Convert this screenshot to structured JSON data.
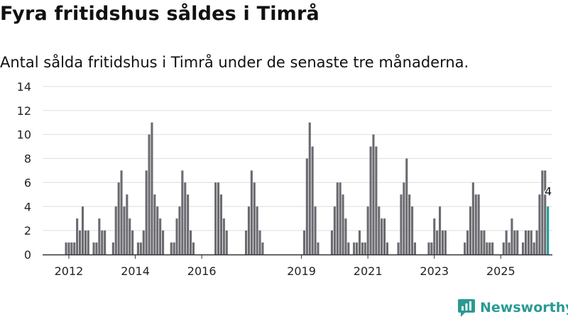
{
  "title": "Fyra fritidshus såldes i Timrå",
  "subtitle": "Antal sålda fritidshus i Timrå under de senaste tre månaderna.",
  "brand": "Newsworthy",
  "colors": {
    "bar": "#6b6a70",
    "highlight": "#1f9e98",
    "grid": "#dddddd",
    "axis": "#333333",
    "brand": "#2a9a93"
  },
  "chart_data": {
    "type": "bar",
    "title": "",
    "xlabel": "",
    "ylabel": "",
    "ylim": [
      0,
      14
    ],
    "yticks": [
      "0",
      "2",
      "4",
      "6",
      "8",
      "10",
      "12",
      "14"
    ],
    "xticks": [
      "2012",
      "2014",
      "2016",
      "2019",
      "2021",
      "2023",
      "2025"
    ],
    "grid": true,
    "x_start": "2011-12",
    "x_end": "2025-10",
    "values": [
      1,
      1,
      1,
      1,
      3,
      2,
      4,
      2,
      2,
      0,
      1,
      1,
      3,
      2,
      2,
      0,
      0,
      1,
      4,
      6,
      7,
      4,
      5,
      3,
      2,
      0,
      1,
      1,
      2,
      7,
      10,
      11,
      5,
      4,
      3,
      2,
      0,
      0,
      1,
      1,
      3,
      4,
      7,
      6,
      5,
      2,
      1,
      0,
      0,
      0,
      0,
      0,
      0,
      0,
      6,
      6,
      5,
      3,
      2,
      0,
      0,
      0,
      0,
      0,
      0,
      2,
      4,
      7,
      6,
      4,
      2,
      1,
      0,
      0,
      0,
      0,
      0,
      0,
      0,
      0,
      0,
      0,
      0,
      0,
      0,
      0,
      2,
      8,
      11,
      9,
      4,
      1,
      0,
      0,
      0,
      0,
      2,
      4,
      6,
      6,
      5,
      3,
      1,
      0,
      1,
      1,
      2,
      1,
      1,
      4,
      9,
      10,
      9,
      4,
      3,
      3,
      1,
      0,
      0,
      0,
      1,
      5,
      6,
      8,
      5,
      4,
      1,
      0,
      0,
      0,
      0,
      1,
      1,
      3,
      2,
      4,
      2,
      2,
      0,
      0,
      0,
      0,
      0,
      0,
      1,
      2,
      4,
      6,
      5,
      5,
      2,
      2,
      1,
      1,
      1,
      0,
      0,
      0,
      1,
      2,
      1,
      3,
      2,
      2,
      0,
      1,
      2,
      2,
      2,
      1,
      2,
      5,
      7,
      7,
      4
    ],
    "last_value_label": "4"
  }
}
